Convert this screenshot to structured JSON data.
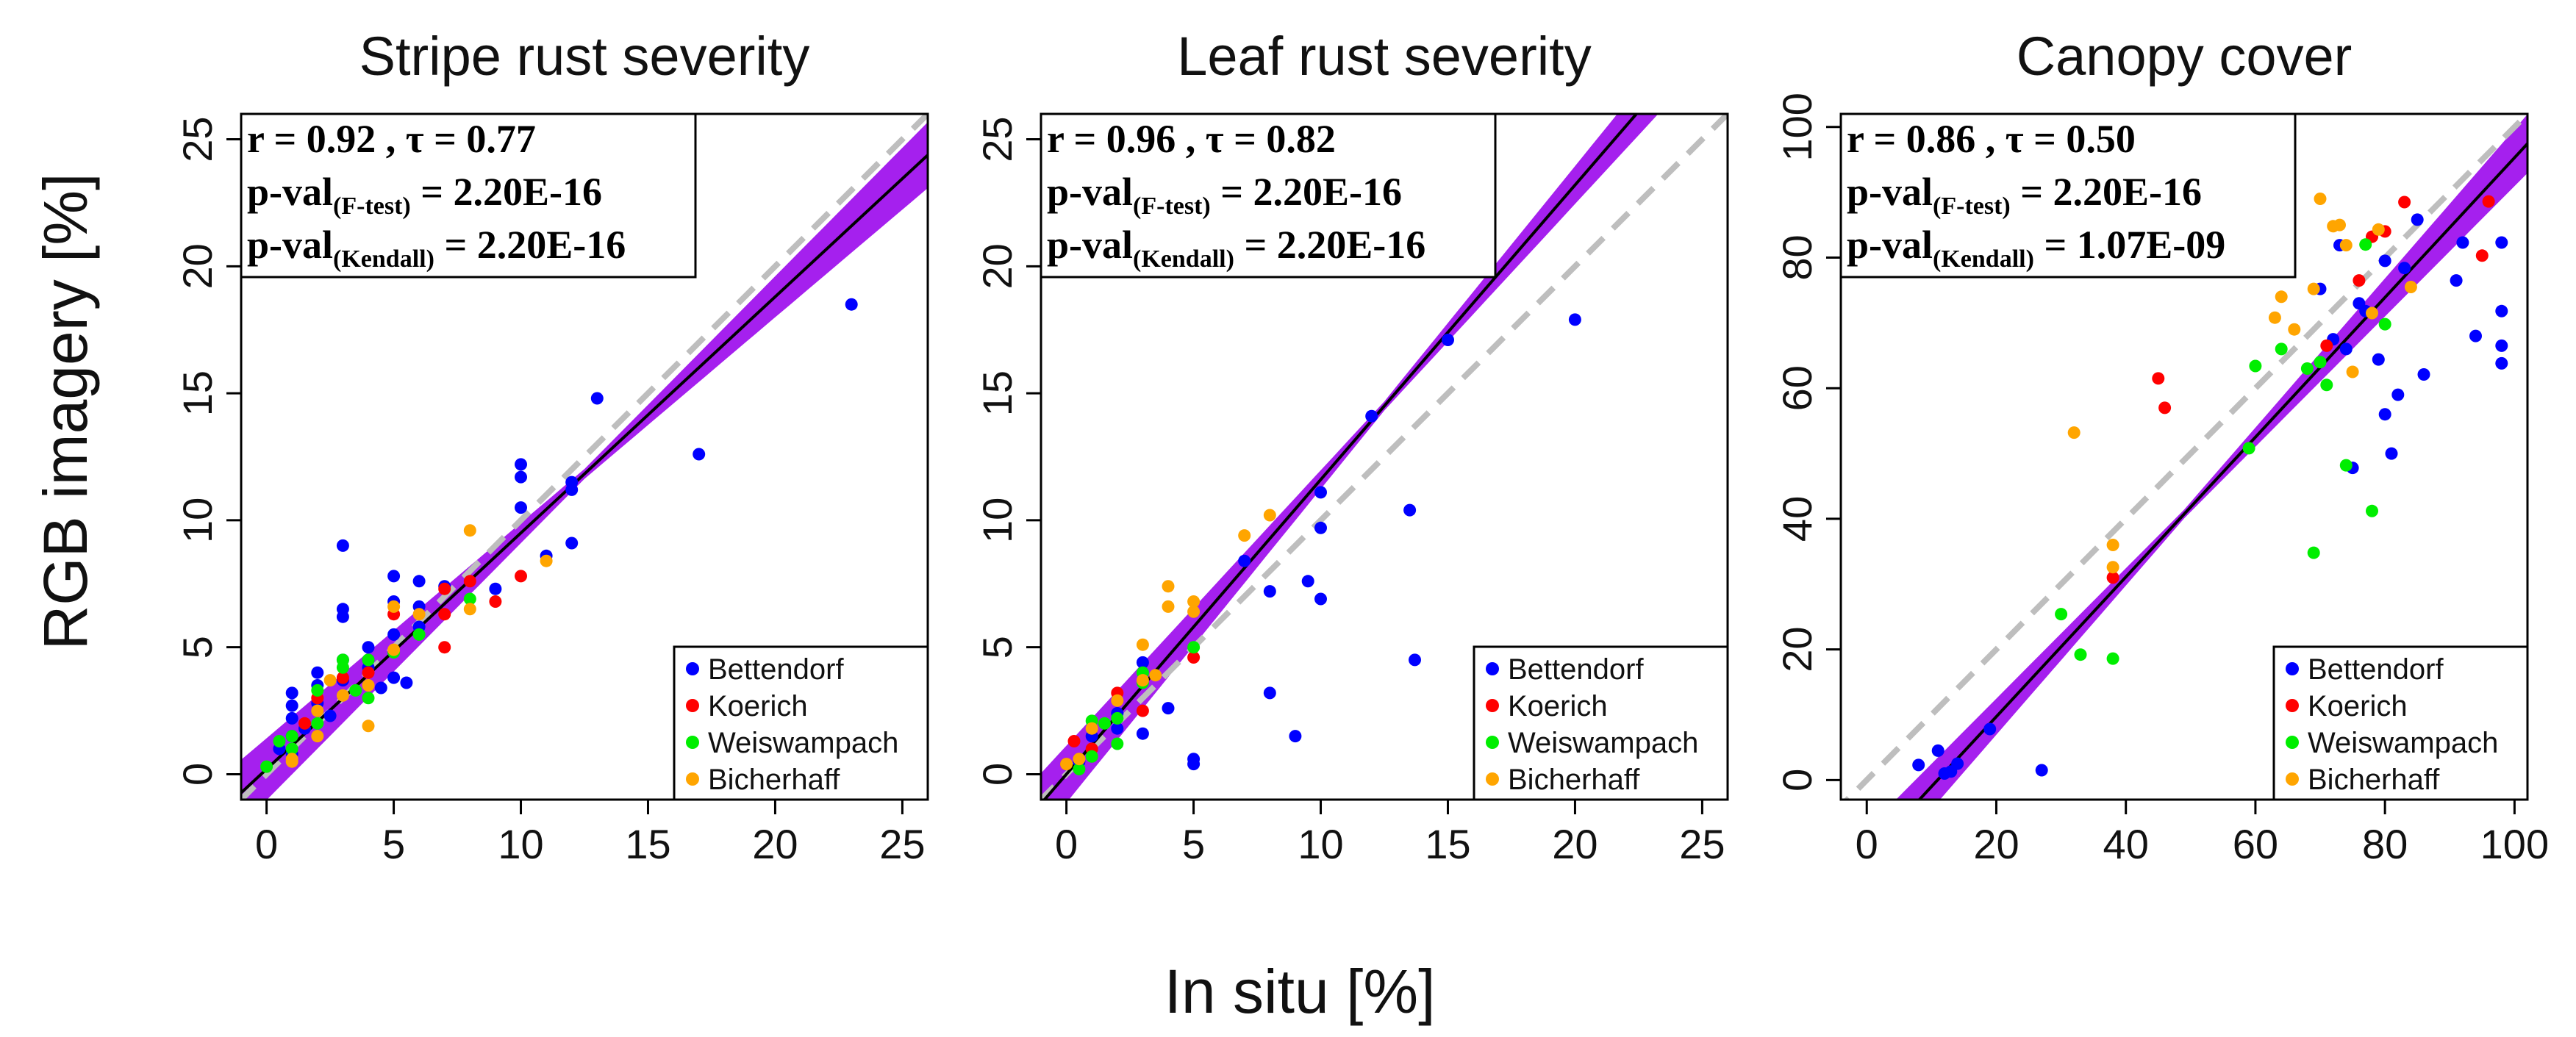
{
  "figure": {
    "xlabel": "In situ [%]",
    "ylabel": "RGB imagery [%]"
  },
  "legend": [
    {
      "name": "Bettendorf",
      "color": "#0000ff"
    },
    {
      "name": "Koerich",
      "color": "#ff0000"
    },
    {
      "name": "Weiswampach",
      "color": "#00ee00"
    },
    {
      "name": "Bicherhaff",
      "color": "#ffa500"
    }
  ],
  "chart_data": [
    {
      "type": "scatter",
      "title": "Stripe rust severity",
      "xlim": [
        -1,
        26
      ],
      "ylim": [
        -1,
        26
      ],
      "xticks": [
        0,
        5,
        10,
        15,
        20,
        25
      ],
      "yticks": [
        0,
        5,
        10,
        15,
        20,
        25
      ],
      "stats": {
        "line1": "r = 0.92 , τ = 0.77",
        "p_ftest_pre": "p-val",
        "p_ftest_sub": "(F-test)",
        "p_ftest_val": " = 2.20E-16",
        "p_kendall_pre": "p-val",
        "p_kendall_sub": "(Kendall)",
        "p_kendall_val": " = 2.20E-16"
      },
      "fit": {
        "intercept": 0.2,
        "slope": 0.93,
        "band_halfwidth_end": 1.3
      },
      "identity_line": true,
      "series": [
        {
          "name": "Bettendorf",
          "points": [
            [
              23,
              18.5
            ],
            [
              17,
              12.6
            ],
            [
              13,
              14.8
            ],
            [
              12,
              11.5
            ],
            [
              12,
              11.2
            ],
            [
              12,
              9.1
            ],
            [
              11,
              8.6
            ],
            [
              10,
              12.2
            ],
            [
              10,
              11.7
            ],
            [
              10,
              10.5
            ],
            [
              9,
              7.3
            ],
            [
              7,
              7.4
            ],
            [
              6,
              7.6
            ],
            [
              6,
              6.6
            ],
            [
              6,
              5.8
            ],
            [
              5,
              7.8
            ],
            [
              5,
              6.8
            ],
            [
              5,
              5.5
            ],
            [
              5,
              3.8
            ],
            [
              4,
              5
            ],
            [
              4,
              4.5
            ],
            [
              4,
              4.2
            ],
            [
              3,
              9
            ],
            [
              3,
              6.5
            ],
            [
              3,
              6.2
            ],
            [
              3,
              4.5
            ],
            [
              3,
              3.7
            ],
            [
              2,
              4
            ],
            [
              2,
              3.5
            ],
            [
              2,
              2.8
            ],
            [
              1,
              3.2
            ],
            [
              1,
              2.7
            ],
            [
              1,
              2.2
            ],
            [
              1,
              1.5
            ],
            [
              1,
              0.8
            ],
            [
              0.5,
              1
            ],
            [
              5.5,
              3.6
            ],
            [
              4.5,
              3.4
            ],
            [
              2.5,
              2.3
            ],
            [
              1.5,
              1.8
            ]
          ]
        },
        {
          "name": "Koerich",
          "points": [
            [
              10,
              7.8
            ],
            [
              9,
              6.8
            ],
            [
              8,
              7.6
            ],
            [
              7,
              7.3
            ],
            [
              7,
              5
            ],
            [
              7,
              6.3
            ],
            [
              5,
              6.3
            ],
            [
              4,
              4
            ],
            [
              3,
              3.8
            ],
            [
              2,
              3
            ],
            [
              1.5,
              2
            ]
          ]
        },
        {
          "name": "Weiswampach",
          "points": [
            [
              8,
              6.9
            ],
            [
              6,
              5.5
            ],
            [
              5,
              4.8
            ],
            [
              4,
              4.5
            ],
            [
              4,
              3
            ],
            [
              3,
              4.5
            ],
            [
              3,
              4.2
            ],
            [
              2,
              3.3
            ],
            [
              2,
              2
            ],
            [
              1,
              1.5
            ],
            [
              0.5,
              1.3
            ],
            [
              0,
              0.3
            ],
            [
              1,
              1
            ],
            [
              3.5,
              3.3
            ]
          ]
        },
        {
          "name": "Bicherhaff",
          "points": [
            [
              11,
              8.4
            ],
            [
              8,
              9.6
            ],
            [
              8,
              6.5
            ],
            [
              6,
              6.3
            ],
            [
              5,
              6.6
            ],
            [
              5,
              4.9
            ],
            [
              4,
              3.5
            ],
            [
              4,
              1.9
            ],
            [
              3,
              3.1
            ],
            [
              2.5,
              3.7
            ],
            [
              2,
              1.5
            ],
            [
              1,
              0.6
            ],
            [
              1,
              0.5
            ],
            [
              2,
              2.5
            ]
          ]
        }
      ]
    },
    {
      "type": "scatter",
      "title": "Leaf rust severity",
      "xlim": [
        -1,
        26
      ],
      "ylim": [
        -1,
        26
      ],
      "xticks": [
        0,
        5,
        10,
        15,
        20,
        25
      ],
      "yticks": [
        0,
        5,
        10,
        15,
        20,
        25
      ],
      "stats": {
        "line1": "r = 0.96 , τ = 0.82",
        "p_ftest_pre": "p-val",
        "p_ftest_sub": "(F-test)",
        "p_ftest_val": " = 2.20E-16",
        "p_kendall_pre": "p-val",
        "p_kendall_sub": "(Kendall)",
        "p_kendall_val": " = 2.20E-16"
      },
      "fit": {
        "intercept": 0.0,
        "slope": 1.16,
        "band_halfwidth_end": 1.2
      },
      "identity_line": true,
      "series": [
        {
          "name": "Bettendorf",
          "points": [
            [
              20,
              17.9
            ],
            [
              15,
              17.1
            ],
            [
              12,
              14.1
            ],
            [
              13.5,
              10.4
            ],
            [
              13.7,
              4.5
            ],
            [
              10,
              11.1
            ],
            [
              10,
              9.7
            ],
            [
              10,
              6.9
            ],
            [
              9.5,
              7.6
            ],
            [
              9,
              1.5
            ],
            [
              8,
              7.2
            ],
            [
              8,
              3.2
            ],
            [
              7,
              8.4
            ],
            [
              5,
              0.6
            ],
            [
              5,
              0.4
            ],
            [
              4,
              2.6
            ],
            [
              3,
              1.6
            ],
            [
              3,
              4.4
            ],
            [
              2,
              2.4
            ],
            [
              2,
              1.8
            ],
            [
              1,
              1.5
            ],
            [
              0.5,
              0.5
            ]
          ]
        },
        {
          "name": "Koerich",
          "points": [
            [
              5,
              4.6
            ],
            [
              3,
              2.5
            ],
            [
              2,
              3.2
            ],
            [
              1,
              1
            ],
            [
              0.3,
              1.3
            ],
            [
              0,
              0.4
            ]
          ]
        },
        {
          "name": "Weiswampach",
          "points": [
            [
              5,
              5
            ],
            [
              3,
              4
            ],
            [
              3,
              3.6
            ],
            [
              2,
              1.2
            ],
            [
              2,
              2.2
            ],
            [
              1,
              2.1
            ],
            [
              1,
              0.7
            ],
            [
              1.5,
              2
            ],
            [
              0.5,
              0.2
            ]
          ]
        },
        {
          "name": "Bicherhaff",
          "points": [
            [
              8,
              10.2
            ],
            [
              7,
              9.4
            ],
            [
              5,
              6.8
            ],
            [
              5,
              6.4
            ],
            [
              4,
              7.4
            ],
            [
              4,
              6.6
            ],
            [
              3,
              5.1
            ],
            [
              3,
              3.7
            ],
            [
              2,
              2.9
            ],
            [
              1,
              1.8
            ],
            [
              0,
              0.4
            ],
            [
              0.5,
              0.6
            ],
            [
              3.5,
              3.9
            ]
          ]
        }
      ]
    },
    {
      "type": "scatter",
      "title": "Canopy cover",
      "xlim": [
        -4,
        102
      ],
      "ylim": [
        -3,
        102
      ],
      "xticks": [
        0,
        20,
        40,
        60,
        80,
        100
      ],
      "yticks": [
        0,
        20,
        40,
        60,
        80,
        100
      ],
      "stats": {
        "line1": "r = 0.86 , τ = 0.50",
        "p_ftest_pre": "p-val",
        "p_ftest_sub": "(F-test)",
        "p_ftest_val": " = 2.20E-16",
        "p_kendall_pre": "p-val",
        "p_kendall_sub": "(Kendall)",
        "p_kendall_val": " = 1.07E-09"
      },
      "fit": {
        "intercept": -11.7,
        "slope": 1.07,
        "band_halfwidth_end": 4.5
      },
      "identity_line": true,
      "series": [
        {
          "name": "Bettendorf",
          "points": [
            [
              98,
              82.3
            ],
            [
              98,
              71.8
            ],
            [
              98,
              66.5
            ],
            [
              98,
              63.8
            ],
            [
              94,
              68
            ],
            [
              92,
              82.3
            ],
            [
              91,
              76.5
            ],
            [
              86,
              62.1
            ],
            [
              85,
              85.8
            ],
            [
              83,
              78.4
            ],
            [
              82,
              59
            ],
            [
              81,
              50
            ],
            [
              80,
              79.5
            ],
            [
              79,
              64.4
            ],
            [
              76,
              73
            ],
            [
              75,
              47.8
            ],
            [
              74,
              66
            ],
            [
              72,
              67.5
            ],
            [
              70,
              75.2
            ],
            [
              27,
              1.5
            ],
            [
              19,
              7.8
            ],
            [
              14,
              2.5
            ],
            [
              13,
              1.3
            ],
            [
              12,
              1
            ],
            [
              11,
              4.5
            ],
            [
              8,
              2.3
            ],
            [
              80,
              56
            ],
            [
              77,
              71.8
            ],
            [
              73,
              81.9
            ]
          ]
        },
        {
          "name": "Koerich",
          "points": [
            [
              96,
              88.6
            ],
            [
              95,
              80.3
            ],
            [
              83,
              88.5
            ],
            [
              80,
              84
            ],
            [
              78,
              83.2
            ],
            [
              76,
              76.5
            ],
            [
              71,
              66.5
            ],
            [
              46,
              57
            ],
            [
              45,
              61.5
            ],
            [
              38,
              31
            ]
          ]
        },
        {
          "name": "Weiswampach",
          "points": [
            [
              80,
              69.8
            ],
            [
              78,
              41.2
            ],
            [
              74,
              48.2
            ],
            [
              71,
              60.5
            ],
            [
              69,
              34.8
            ],
            [
              68,
              63
            ],
            [
              64,
              66
            ],
            [
              60,
              63.4
            ],
            [
              59,
              50.8
            ],
            [
              38,
              18.6
            ],
            [
              33,
              19.2
            ],
            [
              30,
              25.4
            ],
            [
              77,
              82
            ],
            [
              70,
              64
            ]
          ]
        },
        {
          "name": "Bicherhaff",
          "points": [
            [
              84,
              75.5
            ],
            [
              79,
              84.3
            ],
            [
              78,
              71.5
            ],
            [
              75,
              62.5
            ],
            [
              74,
              81.9
            ],
            [
              72,
              84.8
            ],
            [
              70,
              89
            ],
            [
              69,
              75.2
            ],
            [
              64,
              74
            ],
            [
              63,
              70.8
            ],
            [
              38,
              36
            ],
            [
              38,
              32.6
            ],
            [
              32,
              53.2
            ],
            [
              66,
              69
            ],
            [
              73,
              85
            ]
          ]
        }
      ]
    }
  ]
}
